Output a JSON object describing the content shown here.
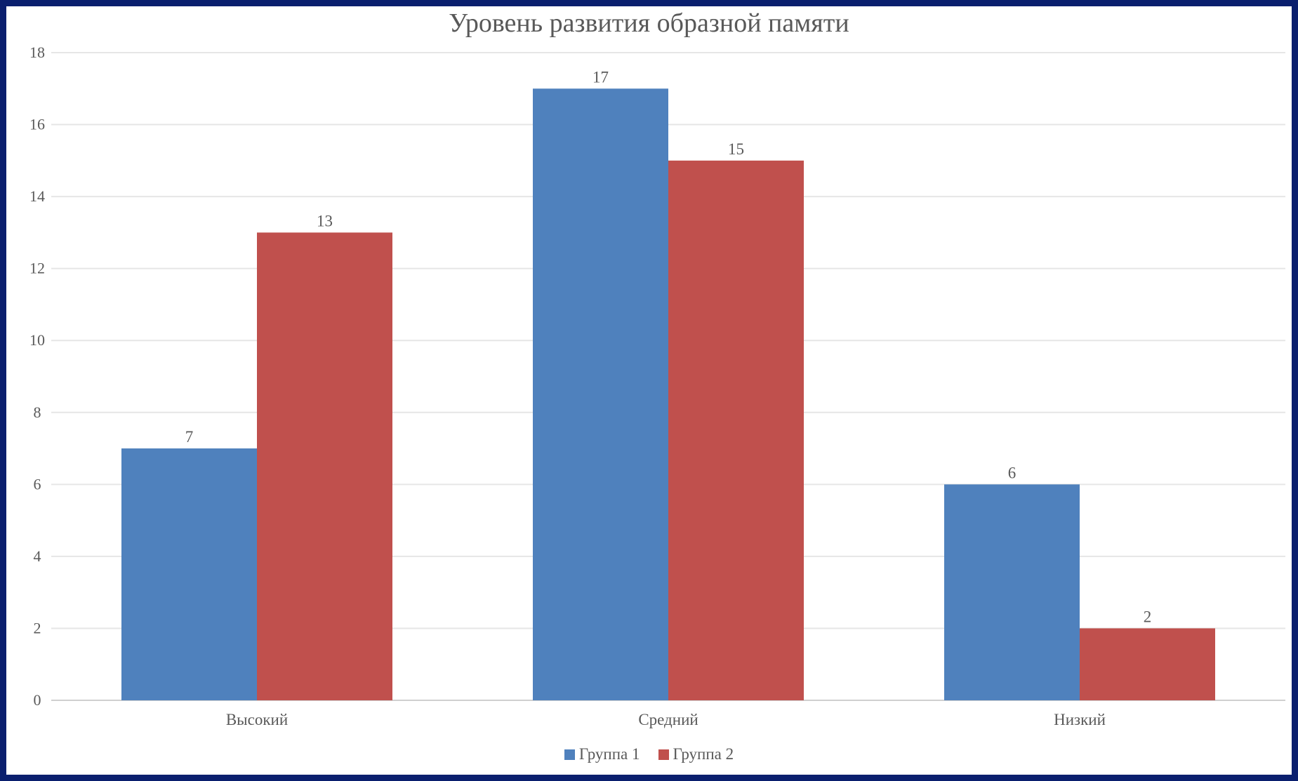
{
  "chart_data": {
    "type": "bar",
    "title": "Уровень развития образной памяти",
    "categories": [
      "Высокий",
      "Средний",
      "Низкий"
    ],
    "series": [
      {
        "name": "Группа 1",
        "values": [
          7,
          17,
          6
        ],
        "color": "#4f81bd"
      },
      {
        "name": "Группа 2",
        "values": [
          13,
          15,
          2
        ],
        "color": "#c0504d"
      }
    ],
    "ylim": [
      0,
      18
    ],
    "yticks": [
      0,
      2,
      4,
      6,
      8,
      10,
      12,
      14,
      16,
      18
    ],
    "grid": true,
    "data_labels": true,
    "legend_position": "bottom"
  }
}
